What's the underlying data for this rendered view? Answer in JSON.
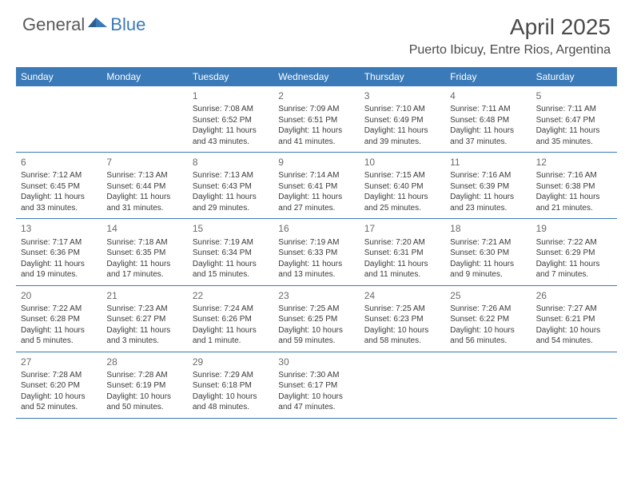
{
  "logo": {
    "general": "General",
    "blue": "Blue"
  },
  "title": "April 2025",
  "location": "Puerto Ibicuy, Entre Rios, Argentina",
  "colors": {
    "header_bg": "#3a7ab8",
    "header_text": "#ffffff",
    "border": "#3a7ab8",
    "body_text": "#3a3a3a",
    "daynum_text": "#6a6a6a",
    "logo_gray": "#5a5a5a",
    "logo_blue": "#3a7ab8",
    "title_text": "#4a4a4a",
    "background": "#ffffff"
  },
  "typography": {
    "title_fontsize": 28,
    "location_fontsize": 16,
    "dow_fontsize": 12,
    "daynum_fontsize": 12,
    "body_fontsize": 10,
    "logo_fontsize": 22
  },
  "dow": [
    "Sunday",
    "Monday",
    "Tuesday",
    "Wednesday",
    "Thursday",
    "Friday",
    "Saturday"
  ],
  "weeks": [
    [
      null,
      null,
      {
        "n": "1",
        "sr": "7:08 AM",
        "ss": "6:52 PM",
        "dl": "11 hours and 43 minutes."
      },
      {
        "n": "2",
        "sr": "7:09 AM",
        "ss": "6:51 PM",
        "dl": "11 hours and 41 minutes."
      },
      {
        "n": "3",
        "sr": "7:10 AM",
        "ss": "6:49 PM",
        "dl": "11 hours and 39 minutes."
      },
      {
        "n": "4",
        "sr": "7:11 AM",
        "ss": "6:48 PM",
        "dl": "11 hours and 37 minutes."
      },
      {
        "n": "5",
        "sr": "7:11 AM",
        "ss": "6:47 PM",
        "dl": "11 hours and 35 minutes."
      }
    ],
    [
      {
        "n": "6",
        "sr": "7:12 AM",
        "ss": "6:45 PM",
        "dl": "11 hours and 33 minutes."
      },
      {
        "n": "7",
        "sr": "7:13 AM",
        "ss": "6:44 PM",
        "dl": "11 hours and 31 minutes."
      },
      {
        "n": "8",
        "sr": "7:13 AM",
        "ss": "6:43 PM",
        "dl": "11 hours and 29 minutes."
      },
      {
        "n": "9",
        "sr": "7:14 AM",
        "ss": "6:41 PM",
        "dl": "11 hours and 27 minutes."
      },
      {
        "n": "10",
        "sr": "7:15 AM",
        "ss": "6:40 PM",
        "dl": "11 hours and 25 minutes."
      },
      {
        "n": "11",
        "sr": "7:16 AM",
        "ss": "6:39 PM",
        "dl": "11 hours and 23 minutes."
      },
      {
        "n": "12",
        "sr": "7:16 AM",
        "ss": "6:38 PM",
        "dl": "11 hours and 21 minutes."
      }
    ],
    [
      {
        "n": "13",
        "sr": "7:17 AM",
        "ss": "6:36 PM",
        "dl": "11 hours and 19 minutes."
      },
      {
        "n": "14",
        "sr": "7:18 AM",
        "ss": "6:35 PM",
        "dl": "11 hours and 17 minutes."
      },
      {
        "n": "15",
        "sr": "7:19 AM",
        "ss": "6:34 PM",
        "dl": "11 hours and 15 minutes."
      },
      {
        "n": "16",
        "sr": "7:19 AM",
        "ss": "6:33 PM",
        "dl": "11 hours and 13 minutes."
      },
      {
        "n": "17",
        "sr": "7:20 AM",
        "ss": "6:31 PM",
        "dl": "11 hours and 11 minutes."
      },
      {
        "n": "18",
        "sr": "7:21 AM",
        "ss": "6:30 PM",
        "dl": "11 hours and 9 minutes."
      },
      {
        "n": "19",
        "sr": "7:22 AM",
        "ss": "6:29 PM",
        "dl": "11 hours and 7 minutes."
      }
    ],
    [
      {
        "n": "20",
        "sr": "7:22 AM",
        "ss": "6:28 PM",
        "dl": "11 hours and 5 minutes."
      },
      {
        "n": "21",
        "sr": "7:23 AM",
        "ss": "6:27 PM",
        "dl": "11 hours and 3 minutes."
      },
      {
        "n": "22",
        "sr": "7:24 AM",
        "ss": "6:26 PM",
        "dl": "11 hours and 1 minute."
      },
      {
        "n": "23",
        "sr": "7:25 AM",
        "ss": "6:25 PM",
        "dl": "10 hours and 59 minutes."
      },
      {
        "n": "24",
        "sr": "7:25 AM",
        "ss": "6:23 PM",
        "dl": "10 hours and 58 minutes."
      },
      {
        "n": "25",
        "sr": "7:26 AM",
        "ss": "6:22 PM",
        "dl": "10 hours and 56 minutes."
      },
      {
        "n": "26",
        "sr": "7:27 AM",
        "ss": "6:21 PM",
        "dl": "10 hours and 54 minutes."
      }
    ],
    [
      {
        "n": "27",
        "sr": "7:28 AM",
        "ss": "6:20 PM",
        "dl": "10 hours and 52 minutes."
      },
      {
        "n": "28",
        "sr": "7:28 AM",
        "ss": "6:19 PM",
        "dl": "10 hours and 50 minutes."
      },
      {
        "n": "29",
        "sr": "7:29 AM",
        "ss": "6:18 PM",
        "dl": "10 hours and 48 minutes."
      },
      {
        "n": "30",
        "sr": "7:30 AM",
        "ss": "6:17 PM",
        "dl": "10 hours and 47 minutes."
      },
      null,
      null,
      null
    ]
  ],
  "labels": {
    "sunrise": "Sunrise:",
    "sunset": "Sunset:",
    "daylight": "Daylight:"
  }
}
